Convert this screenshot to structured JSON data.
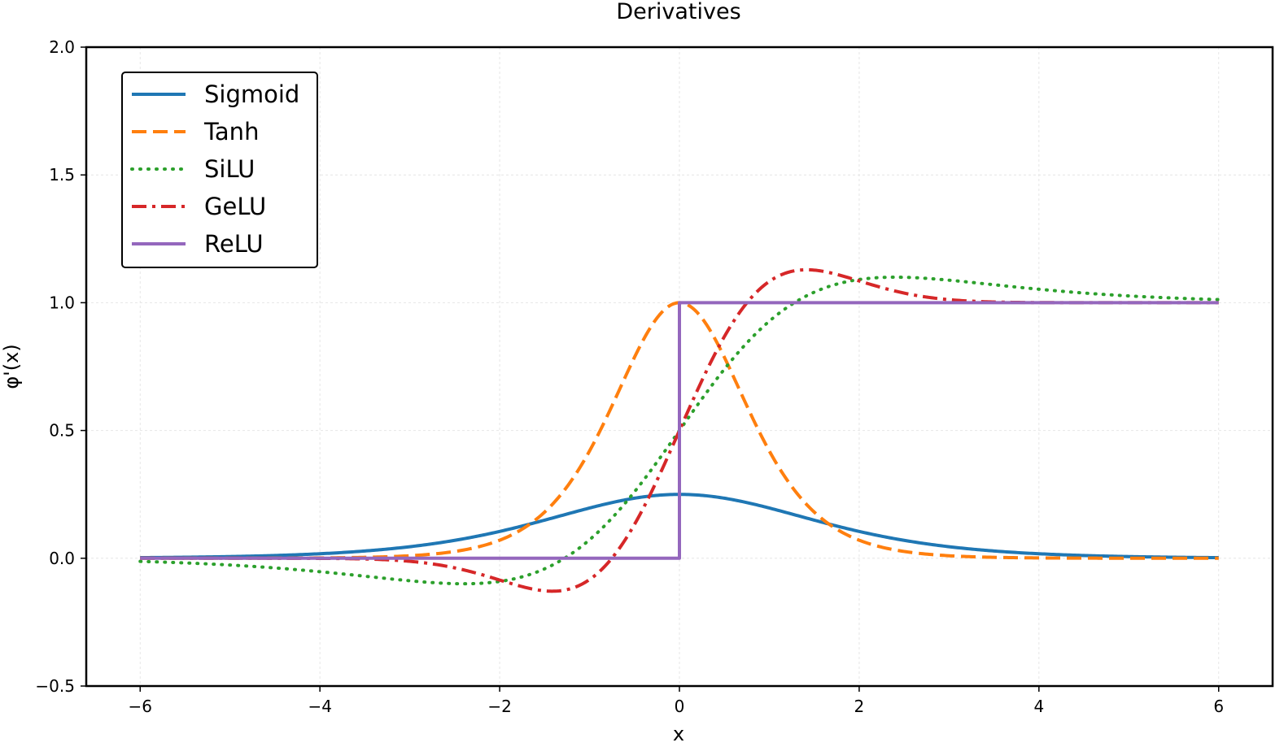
{
  "chart_data": {
    "type": "line",
    "title": "Derivatives",
    "xlabel": "x",
    "ylabel": "φ'(x)",
    "xlim": [
      -6.6,
      6.6
    ],
    "ylim": [
      -0.5,
      2.0
    ],
    "xticks": [
      -6,
      -4,
      -2,
      0,
      2,
      4,
      6
    ],
    "xtick_labels": [
      "−6",
      "−4",
      "−2",
      "0",
      "2",
      "4",
      "6"
    ],
    "yticks": [
      -0.5,
      0.0,
      0.5,
      1.0,
      1.5,
      2.0
    ],
    "ytick_labels": [
      "−0.5",
      "0.0",
      "0.5",
      "1.0",
      "1.5",
      "2.0"
    ],
    "grid": true,
    "legend_position": "top-left",
    "x_range": [
      -6,
      6
    ],
    "series": [
      {
        "name": "Sigmoid",
        "function": "sigmoid_derivative",
        "color": "#1f77b4",
        "style": "solid",
        "samples": {
          "x": [
            -6,
            -4,
            -2,
            0,
            2,
            4,
            6
          ],
          "y": [
            0.0025,
            0.0177,
            0.105,
            0.25,
            0.105,
            0.0177,
            0.0025
          ]
        }
      },
      {
        "name": "Tanh",
        "function": "tanh_derivative",
        "color": "#ff7f0e",
        "style": "dashed",
        "samples": {
          "x": [
            -6,
            -4,
            -2,
            0,
            2,
            4,
            6
          ],
          "y": [
            0.0,
            0.0013,
            0.0707,
            1.0,
            0.0707,
            0.0013,
            0.0
          ]
        }
      },
      {
        "name": "SiLU",
        "function": "silu_derivative",
        "color": "#2ca02c",
        "style": "dotted",
        "samples": {
          "x": [
            -6,
            -4,
            -2,
            0,
            2,
            4,
            6
          ],
          "y": [
            -0.0123,
            -0.0533,
            -0.0908,
            0.5,
            1.0908,
            1.0533,
            1.0123
          ]
        }
      },
      {
        "name": "GeLU",
        "function": "gelu_derivative",
        "color": "#d62728",
        "style": "dashdot",
        "samples": {
          "x": [
            -6,
            -4,
            -2,
            0,
            2,
            4,
            6
          ],
          "y": [
            0.0,
            -0.0005,
            -0.0852,
            0.5,
            1.0852,
            1.0005,
            1.0
          ]
        }
      },
      {
        "name": "ReLU",
        "function": "relu_derivative",
        "color": "#9467bd",
        "style": "solid",
        "samples": {
          "x": [
            -6,
            0,
            0,
            6
          ],
          "y": [
            0,
            0,
            1,
            1
          ]
        }
      }
    ]
  }
}
